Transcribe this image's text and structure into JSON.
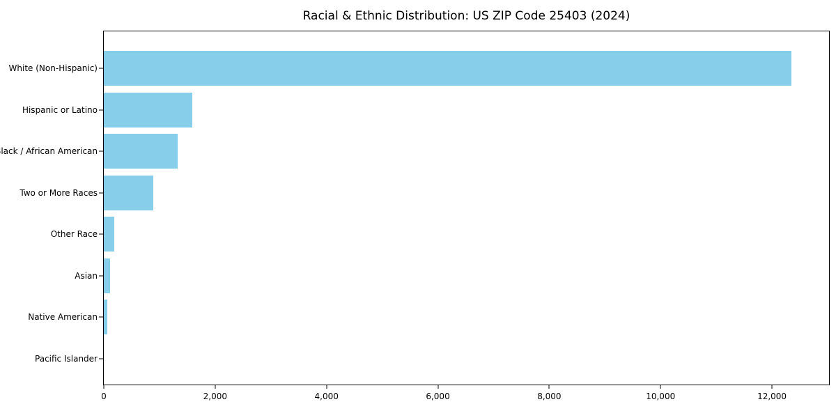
{
  "chart_data": {
    "type": "bar",
    "orientation": "horizontal",
    "title": "Racial & Ethnic Distribution: US ZIP Code 25403 (2024)",
    "categories": [
      "White (Non-Hispanic)",
      "Hispanic or Latino",
      "Black / African American",
      "Two or More Races",
      "Other Race",
      "Asian",
      "Native American",
      "Pacific Islander"
    ],
    "values": [
      12350,
      1585,
      1325,
      885,
      185,
      115,
      60,
      0
    ],
    "xlabel": "",
    "ylabel": "",
    "xlim": [
      0,
      13025
    ],
    "xticks": [
      0,
      2000,
      4000,
      6000,
      8000,
      10000,
      12000
    ],
    "xtick_labels": [
      "0",
      "2,000",
      "4,000",
      "6,000",
      "8,000",
      "10,000",
      "12,000"
    ],
    "bar_color": "#87CEEB",
    "axis_color": "#000000",
    "background_color": "#ffffff",
    "grid": false,
    "legend": null
  }
}
